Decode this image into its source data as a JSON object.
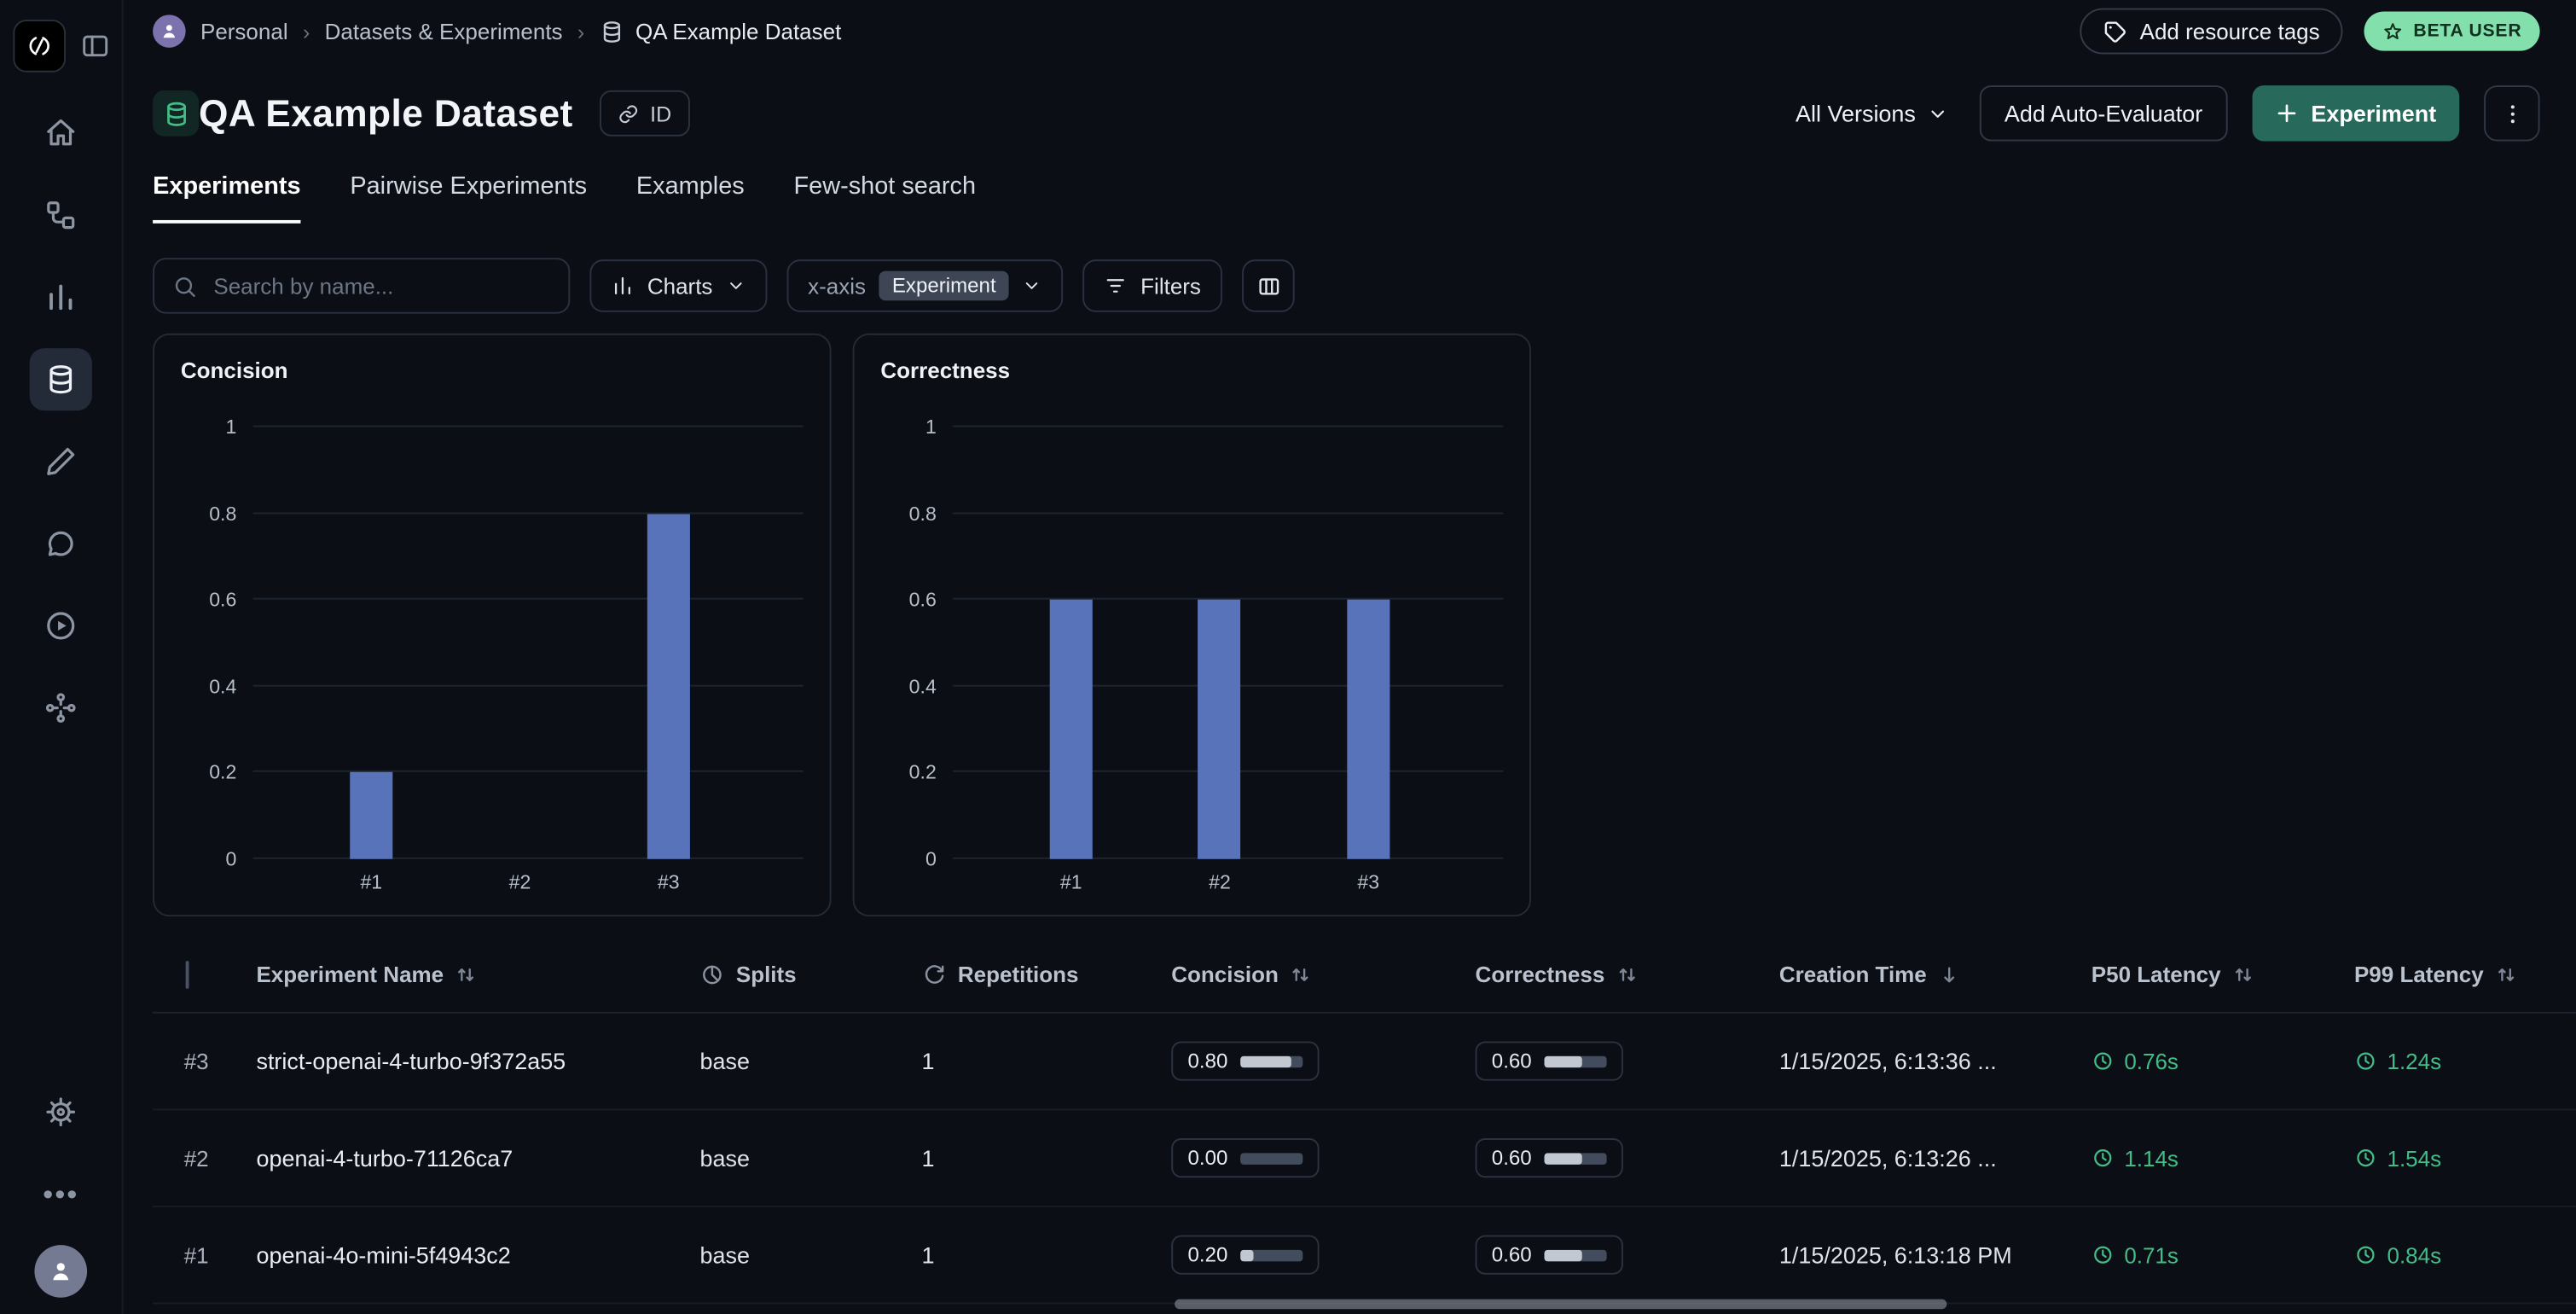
{
  "topbar": {
    "breadcrumb": {
      "items": [
        "Personal",
        "Datasets & Experiments",
        "QA Example Dataset"
      ]
    },
    "add_resource_tags_label": "Add resource tags",
    "beta_badge_label": "BETA USER"
  },
  "header": {
    "title": "QA Example Dataset",
    "id_chip_label": "ID",
    "versions_dropdown_value": "All Versions",
    "add_auto_evaluator_label": "Add Auto-Evaluator",
    "new_experiment_label": "Experiment"
  },
  "tabs": {
    "items": [
      {
        "label": "Experiments",
        "active": true
      },
      {
        "label": "Pairwise Experiments",
        "active": false
      },
      {
        "label": "Examples",
        "active": false
      },
      {
        "label": "Few-shot search",
        "active": false
      }
    ]
  },
  "toolbar": {
    "search_placeholder": "Search by name...",
    "charts_button_label": "Charts",
    "xaxis_label": "x-axis",
    "xaxis_value": "Experiment",
    "filters_button_label": "Filters"
  },
  "chart_data": [
    {
      "type": "bar",
      "title": "Concision",
      "categories": [
        "#1",
        "#2",
        "#3"
      ],
      "values": [
        0.2,
        0,
        0.8
      ],
      "xlabel": "",
      "ylabel": "",
      "ylim": [
        0,
        1
      ],
      "yticks": [
        0,
        0.2,
        0.4,
        0.6,
        0.8,
        1
      ],
      "grid": true,
      "legend": false,
      "bar_color": "#5873b9"
    },
    {
      "type": "bar",
      "title": "Correctness",
      "categories": [
        "#1",
        "#2",
        "#3"
      ],
      "values": [
        0.6,
        0.6,
        0.6
      ],
      "xlabel": "",
      "ylabel": "",
      "ylim": [
        0,
        1
      ],
      "yticks": [
        0,
        0.2,
        0.4,
        0.6,
        0.8,
        1
      ],
      "grid": true,
      "legend": false,
      "bar_color": "#5873b9"
    }
  ],
  "table": {
    "headers": {
      "name": "Experiment Name",
      "splits": "Splits",
      "repetitions": "Repetitions",
      "concision": "Concision",
      "correctness": "Correctness",
      "creation_time": "Creation Time",
      "p50": "P50 Latency",
      "p99": "P99 Latency"
    },
    "rows": [
      {
        "index": "#3",
        "name": "strict-openai-4-turbo-9f372a55",
        "splits": "base",
        "repetitions": "1",
        "concision": "0.80",
        "concision_pct": 80,
        "correctness": "0.60",
        "correctness_pct": 60,
        "creation_time": "1/15/2025, 6:13:36 ...",
        "p50_latency": "0.76s",
        "p99_latency": "1.24s"
      },
      {
        "index": "#2",
        "name": "openai-4-turbo-71126ca7",
        "splits": "base",
        "repetitions": "1",
        "concision": "0.00",
        "concision_pct": 0,
        "correctness": "0.60",
        "correctness_pct": 60,
        "creation_time": "1/15/2025, 6:13:26 ...",
        "p50_latency": "1.14s",
        "p99_latency": "1.54s"
      },
      {
        "index": "#1",
        "name": "openai-4o-mini-5f4943c2",
        "splits": "base",
        "repetitions": "1",
        "concision": "0.20",
        "concision_pct": 20,
        "correctness": "0.60",
        "correctness_pct": 60,
        "creation_time": "1/15/2025, 6:13:18 PM",
        "p50_latency": "0.71s",
        "p99_latency": "0.84s"
      }
    ]
  },
  "icons": {
    "sidebar": [
      "home-icon",
      "tracing-projects-icon",
      "dashboards-icon",
      "datasets-icon",
      "annotation-queues-icon",
      "prompts-icon",
      "playground-icon",
      "deployments-icon",
      "settings-icon",
      "more-icon",
      "user-avatar-icon"
    ],
    "other": [
      "search-icon",
      "chevron-down-icon",
      "tag-icon",
      "star-icon",
      "link-icon",
      "plus-icon",
      "kebab-icon",
      "filter-icon",
      "columns-icon",
      "pie-icon",
      "repeat-icon",
      "clock-icon",
      "sort-icon",
      "sort-desc-icon",
      "checkbox"
    ]
  },
  "colors": {
    "background": "#0b0e14",
    "accent_green_button": "#27695a",
    "beta_badge_green": "#83e0ac",
    "bar_blue": "#5873b9",
    "latency_green": "#43bd88"
  }
}
